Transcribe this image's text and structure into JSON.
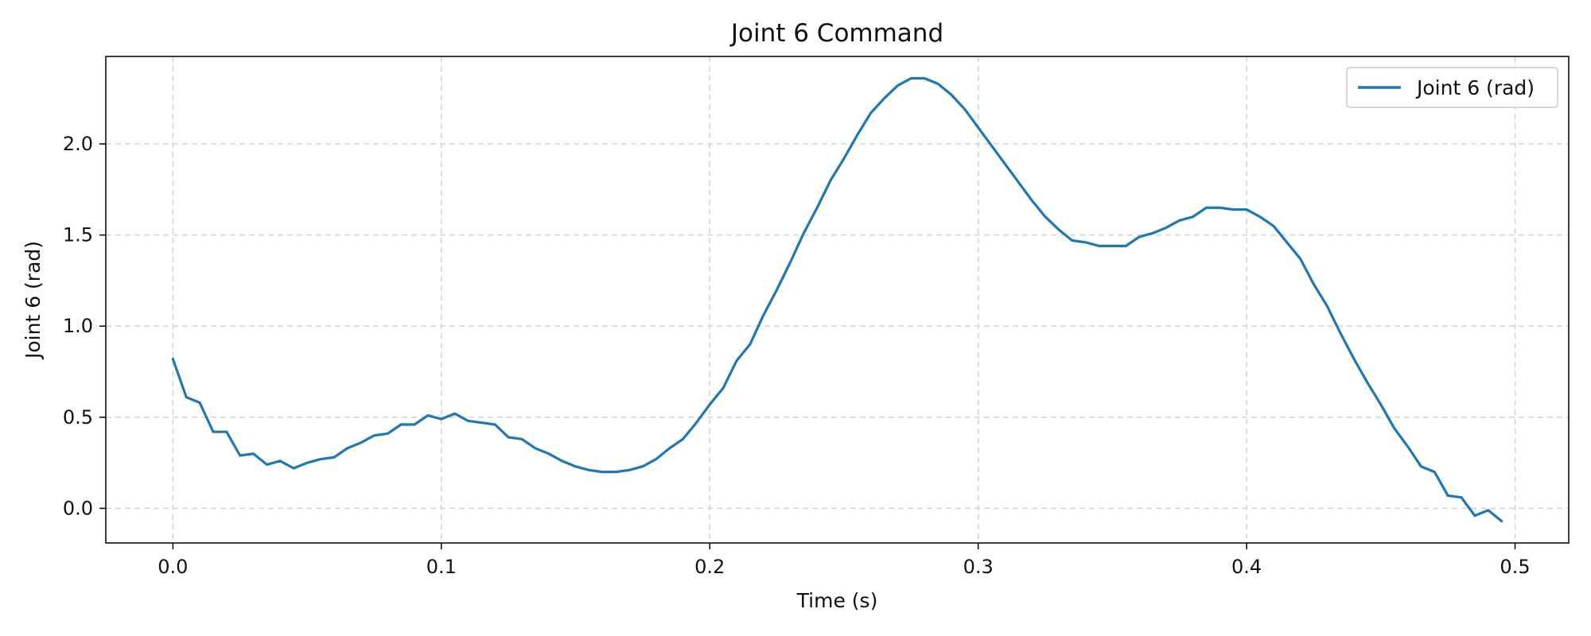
{
  "chart_data": {
    "type": "line",
    "title": "Joint 6 Command",
    "xlabel": "Time (s)",
    "ylabel": "Joint 6 (rad)",
    "xlim": [
      -0.025,
      0.52
    ],
    "ylim": [
      -0.19,
      2.48
    ],
    "xticks": [
      0.0,
      0.1,
      0.2,
      0.3,
      0.4,
      0.5
    ],
    "xtick_labels": [
      "0.0",
      "0.1",
      "0.2",
      "0.3",
      "0.4",
      "0.5"
    ],
    "yticks": [
      0.0,
      0.5,
      1.0,
      1.5,
      2.0
    ],
    "ytick_labels": [
      "0.0",
      "0.5",
      "1.0",
      "1.5",
      "2.0"
    ],
    "grid": true,
    "legend_position": "top-right",
    "series": [
      {
        "name": "Joint 6 (rad)",
        "color": "#1f77b4",
        "x": [
          0.0,
          0.005,
          0.01,
          0.015,
          0.02,
          0.025,
          0.03,
          0.035,
          0.04,
          0.045,
          0.05,
          0.055,
          0.06,
          0.065,
          0.07,
          0.075,
          0.08,
          0.085,
          0.09,
          0.095,
          0.1,
          0.105,
          0.11,
          0.115,
          0.12,
          0.125,
          0.13,
          0.135,
          0.14,
          0.145,
          0.15,
          0.155,
          0.16,
          0.165,
          0.17,
          0.175,
          0.18,
          0.185,
          0.19,
          0.195,
          0.2,
          0.205,
          0.21,
          0.215,
          0.22,
          0.225,
          0.23,
          0.235,
          0.24,
          0.245,
          0.25,
          0.255,
          0.26,
          0.265,
          0.27,
          0.275,
          0.28,
          0.285,
          0.29,
          0.295,
          0.3,
          0.305,
          0.31,
          0.315,
          0.32,
          0.325,
          0.33,
          0.335,
          0.34,
          0.345,
          0.35,
          0.355,
          0.36,
          0.365,
          0.37,
          0.375,
          0.38,
          0.385,
          0.39,
          0.395,
          0.4,
          0.405,
          0.41,
          0.415,
          0.42,
          0.425,
          0.43,
          0.435,
          0.44,
          0.445,
          0.45,
          0.455,
          0.46,
          0.465,
          0.47,
          0.475,
          0.48,
          0.485,
          0.49,
          0.495
        ],
        "y": [
          0.82,
          0.61,
          0.58,
          0.42,
          0.42,
          0.29,
          0.3,
          0.24,
          0.26,
          0.22,
          0.25,
          0.27,
          0.28,
          0.33,
          0.36,
          0.4,
          0.41,
          0.46,
          0.46,
          0.51,
          0.49,
          0.52,
          0.48,
          0.47,
          0.46,
          0.39,
          0.38,
          0.33,
          0.3,
          0.26,
          0.23,
          0.21,
          0.2,
          0.2,
          0.21,
          0.23,
          0.27,
          0.33,
          0.38,
          0.47,
          0.57,
          0.66,
          0.81,
          0.9,
          1.06,
          1.2,
          1.35,
          1.51,
          1.65,
          1.8,
          1.92,
          2.05,
          2.17,
          2.25,
          2.32,
          2.36,
          2.36,
          2.33,
          2.27,
          2.19,
          2.09,
          1.99,
          1.89,
          1.79,
          1.69,
          1.6,
          1.53,
          1.47,
          1.46,
          1.44,
          1.44,
          1.44,
          1.49,
          1.51,
          1.54,
          1.58,
          1.6,
          1.65,
          1.65,
          1.64,
          1.64,
          1.6,
          1.55,
          1.46,
          1.37,
          1.23,
          1.11,
          0.96,
          0.82,
          0.69,
          0.57,
          0.44,
          0.34,
          0.23,
          0.2,
          0.07,
          0.06,
          -0.04,
          -0.01,
          -0.07
        ]
      }
    ]
  }
}
